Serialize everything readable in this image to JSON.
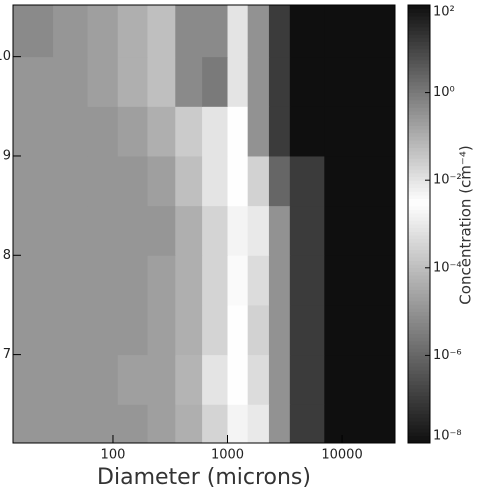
{
  "chart_data": {
    "type": "heatmap",
    "x_label": "Diameter (microns)",
    "colorbar_label": "Concentration (cm⁻⁴)",
    "xscale": "log",
    "zscale": "log",
    "xlim": [
      13.4,
      29000
    ],
    "ylim": [
      6.11,
      10.52
    ],
    "xticks": [
      100,
      1000,
      10000
    ],
    "yticks": [
      7,
      8,
      9,
      10
    ],
    "xbins": [
      13.4,
      30,
      60,
      110,
      200,
      350,
      600,
      1000,
      1500,
      2300,
      3500,
      7000,
      29000
    ],
    "ybins": [
      6.11,
      6.5,
      7,
      7.5,
      8,
      8.5,
      9,
      9.5,
      10,
      10.52
    ],
    "z": [
      [
        0.3,
        0.3,
        0.3,
        0.3,
        0.2,
        0.1,
        0.02,
        0.005,
        0.001,
        1e-05,
        1e-07,
        1e-08
      ],
      [
        0.3,
        0.3,
        0.3,
        0.2,
        0.2,
        0.08,
        0.01,
        0.003,
        0.0005,
        1e-05,
        1e-07,
        1e-08
      ],
      [
        0.3,
        0.3,
        0.3,
        0.3,
        0.2,
        0.1,
        0.02,
        0.003,
        0.0003,
        1e-05,
        1e-07,
        1e-08
      ],
      [
        0.3,
        0.3,
        0.3,
        0.3,
        0.2,
        0.1,
        0.02,
        0.004,
        0.0005,
        1e-05,
        1e-07,
        1e-08
      ],
      [
        0.3,
        0.3,
        0.3,
        0.3,
        0.3,
        0.1,
        0.02,
        0.005,
        0.001,
        1e-05,
        1e-07,
        1e-08
      ],
      [
        0.3,
        0.3,
        0.3,
        0.3,
        0.2,
        0.05,
        0.01,
        0.003,
        0.0003,
        1e-06,
        1e-07,
        1e-08
      ],
      [
        0.3,
        0.3,
        0.3,
        0.2,
        0.1,
        0.03,
        0.01,
        0.003,
        1e-05,
        1e-07,
        1e-08,
        1e-08
      ],
      [
        0.3,
        0.3,
        0.2,
        0.1,
        0.05,
        0.5,
        1,
        0.01,
        1e-05,
        1e-07,
        1e-08,
        1e-08
      ],
      [
        0.5,
        0.3,
        0.2,
        0.1,
        0.05,
        0.5,
        0.5,
        0.01,
        1e-05,
        1e-07,
        1e-08,
        1e-08
      ]
    ],
    "zlim": [
      1e-08,
      100
    ],
    "zticks": [
      {
        "value": 100,
        "label": "10²"
      },
      {
        "value": 1,
        "label": "10⁰"
      },
      {
        "value": 0.01,
        "label": "10⁻²"
      },
      {
        "value": 0.0001,
        "label": "10⁻⁴"
      },
      {
        "value": 1e-06,
        "label": "10⁻⁶"
      },
      {
        "value": 1e-08,
        "label": "10⁻⁸"
      }
    ]
  }
}
